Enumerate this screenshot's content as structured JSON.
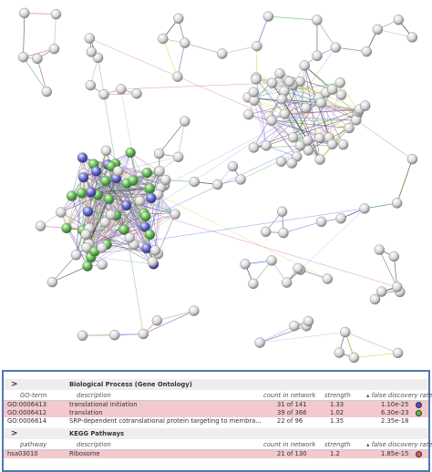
{
  "sections": [
    {
      "title": "Biological Process (Gene Ontology)",
      "columns": [
        "GO-term",
        "description",
        "count in network",
        "strength",
        "false discovery rate"
      ],
      "rows": [
        [
          "GO:0006413",
          "translational initiation",
          "31 of 141",
          "1.33",
          "1.10e-25"
        ],
        [
          "GO:0006412",
          "translation",
          "39 of 366",
          "1.02",
          "6.30e-23"
        ],
        [
          "GO:0006614",
          "SRP-dependent cotranslational protein targeting to membra...",
          "22 of 96",
          "1.35",
          "2.35e-18"
        ]
      ]
    },
    {
      "title": "KEGG Pathways",
      "columns": [
        "pathway",
        "description",
        "count in network",
        "strength",
        "false discovery rate"
      ],
      "rows": [
        [
          "hsa03010",
          "Ribosome",
          "21 of 130",
          "1.2",
          "1.85e-15"
        ]
      ]
    }
  ]
}
